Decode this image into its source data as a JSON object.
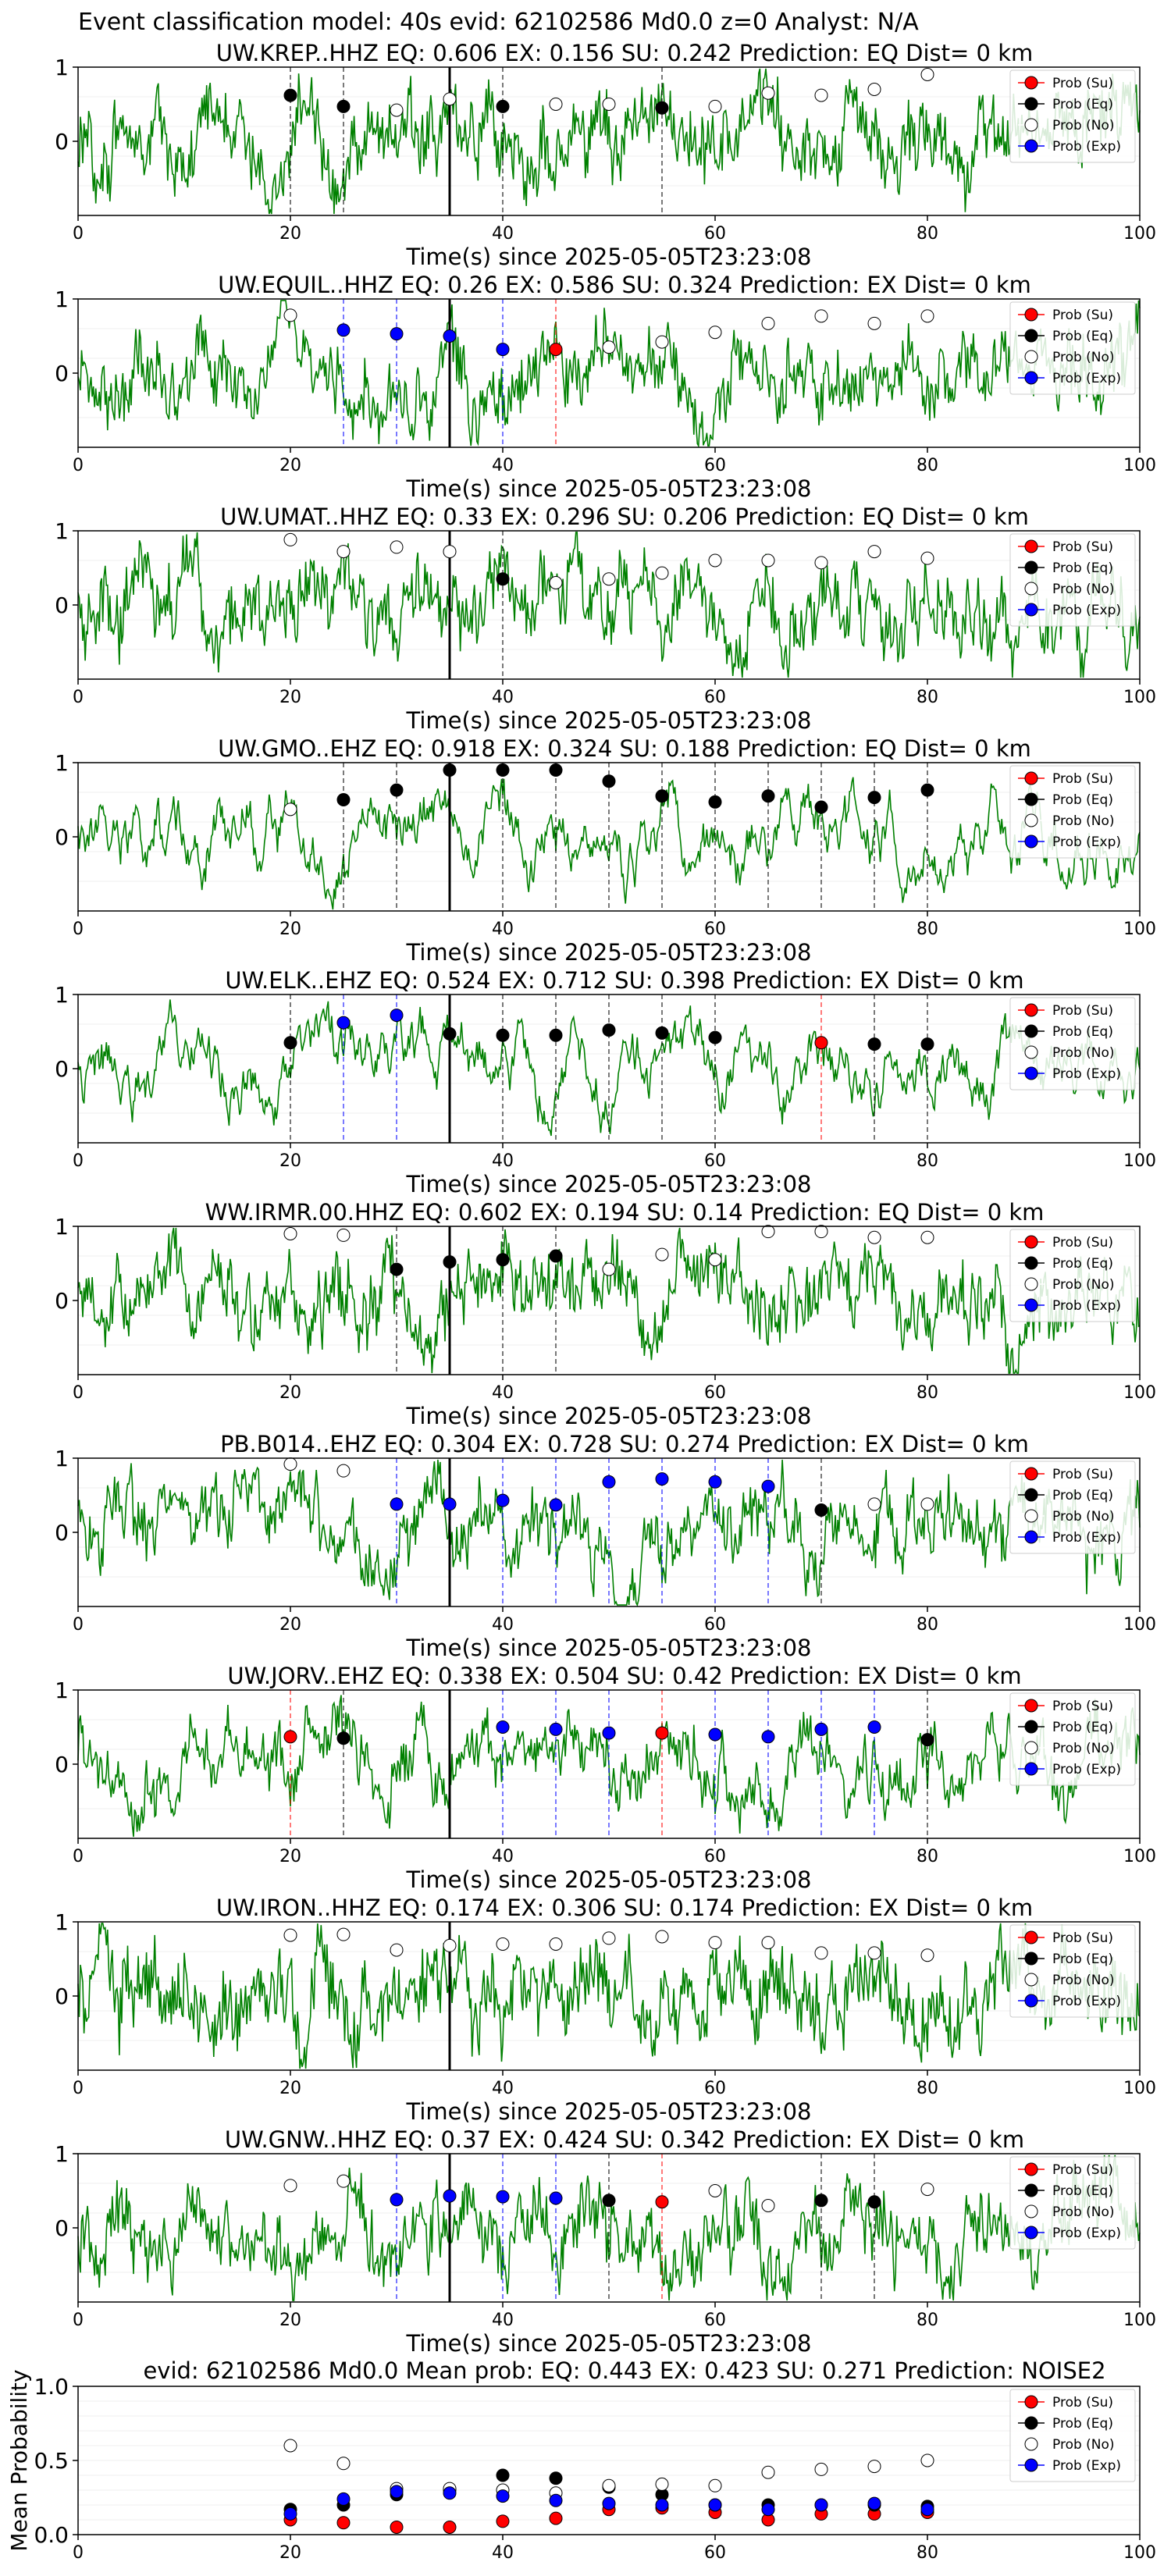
{
  "suptitle": "Event classification model: 40s evid: 62102586 Md0.0 z=0 Analyst: N/A",
  "colors": {
    "waveform": "#008000",
    "su": "#ff0000",
    "eq": "#000000",
    "no": "#ffffff",
    "exp": "#0000ff",
    "arrival": "#000000"
  },
  "legend": {
    "su": "Prob (Su)",
    "eq": "Prob (Eq)",
    "no": "Prob (No)",
    "exp": "Prob (Exp)"
  },
  "panels": [
    {
      "title": "UW.KREP..HHZ   EQ: 0.606  EX: 0.156  SU: 0.242   Prediction: EQ    Dist= 0 km",
      "xlabel": "Time(s) since 2025-05-05T23:23:08",
      "ylim": [
        -1,
        1
      ],
      "yticks": [
        "1",
        "0"
      ],
      "xticks": [
        "0",
        "20",
        "40",
        "60",
        "80",
        "100"
      ],
      "arrival": 35,
      "noise": 0.55,
      "points": [
        [
          20,
          0.62,
          "eq"
        ],
        [
          25,
          0.47,
          "eq"
        ],
        [
          30,
          0.42,
          "no"
        ],
        [
          35,
          0.57,
          "no"
        ],
        [
          40,
          0.47,
          "eq"
        ],
        [
          45,
          0.5,
          "no"
        ],
        [
          50,
          0.5,
          "no"
        ],
        [
          55,
          0.45,
          "eq"
        ],
        [
          60,
          0.47,
          "no"
        ],
        [
          65,
          0.65,
          "no"
        ],
        [
          70,
          0.62,
          "no"
        ],
        [
          75,
          0.7,
          "no"
        ],
        [
          80,
          0.9,
          "no"
        ]
      ]
    },
    {
      "title": "UW.EQUIL..HHZ   EQ: 0.26  EX: 0.586  SU: 0.324   Prediction: EX    Dist= 0 km",
      "xlabel": "Time(s) since 2025-05-05T23:23:08",
      "ylim": [
        -1,
        1
      ],
      "yticks": [
        "1",
        "0"
      ],
      "xticks": [
        "0",
        "20",
        "40",
        "60",
        "80",
        "100"
      ],
      "arrival": 35,
      "noise": 0.5,
      "points": [
        [
          20,
          0.78,
          "no"
        ],
        [
          25,
          0.58,
          "exp"
        ],
        [
          30,
          0.53,
          "exp"
        ],
        [
          35,
          0.5,
          "exp"
        ],
        [
          40,
          0.32,
          "exp"
        ],
        [
          45,
          0.32,
          "su"
        ],
        [
          50,
          0.35,
          "no"
        ],
        [
          55,
          0.42,
          "no"
        ],
        [
          60,
          0.55,
          "no"
        ],
        [
          65,
          0.67,
          "no"
        ],
        [
          70,
          0.77,
          "no"
        ],
        [
          75,
          0.67,
          "no"
        ],
        [
          80,
          0.77,
          "no"
        ]
      ]
    },
    {
      "title": "UW.UMAT..HHZ   EQ: 0.33  EX: 0.296  SU: 0.206   Prediction: EQ    Dist= 0 km",
      "xlabel": "Time(s) since 2025-05-05T23:23:08",
      "ylim": [
        -1,
        1
      ],
      "yticks": [
        "1",
        "0"
      ],
      "xticks": [
        "0",
        "20",
        "40",
        "60",
        "80",
        "100"
      ],
      "arrival": 35,
      "noise": 0.55,
      "points": [
        [
          20,
          0.88,
          "no"
        ],
        [
          25,
          0.72,
          "no"
        ],
        [
          30,
          0.78,
          "no"
        ],
        [
          35,
          0.72,
          "no"
        ],
        [
          40,
          0.35,
          "eq"
        ],
        [
          45,
          0.3,
          "no"
        ],
        [
          50,
          0.35,
          "no"
        ],
        [
          55,
          0.43,
          "no"
        ],
        [
          60,
          0.6,
          "no"
        ],
        [
          65,
          0.6,
          "no"
        ],
        [
          70,
          0.57,
          "no"
        ],
        [
          75,
          0.72,
          "no"
        ],
        [
          80,
          0.63,
          "no"
        ]
      ]
    },
    {
      "title": "UW.GMO..EHZ   EQ: 0.918  EX: 0.324  SU: 0.188   Prediction: EQ    Dist= 0 km",
      "xlabel": "Time(s) since 2025-05-05T23:23:08",
      "ylim": [
        -1,
        1
      ],
      "yticks": [
        "1",
        "0"
      ],
      "xticks": [
        "0",
        "20",
        "40",
        "60",
        "80",
        "100"
      ],
      "arrival": 35,
      "noise": 0.12,
      "points": [
        [
          20,
          0.37,
          "no"
        ],
        [
          25,
          0.5,
          "eq"
        ],
        [
          30,
          0.63,
          "eq"
        ],
        [
          35,
          0.9,
          "eq"
        ],
        [
          40,
          0.9,
          "eq"
        ],
        [
          45,
          0.9,
          "eq"
        ],
        [
          50,
          0.75,
          "eq"
        ],
        [
          55,
          0.55,
          "eq"
        ],
        [
          60,
          0.47,
          "eq"
        ],
        [
          65,
          0.55,
          "eq"
        ],
        [
          70,
          0.4,
          "eq"
        ],
        [
          75,
          0.53,
          "eq"
        ],
        [
          80,
          0.63,
          "eq"
        ]
      ]
    },
    {
      "title": "UW.ELK..EHZ   EQ: 0.524  EX: 0.712  SU: 0.398   Prediction: EX    Dist= 0 km",
      "xlabel": "Time(s) since 2025-05-05T23:23:08",
      "ylim": [
        -1,
        1
      ],
      "yticks": [
        "1",
        "0"
      ],
      "xticks": [
        "0",
        "20",
        "40",
        "60",
        "80",
        "100"
      ],
      "arrival": 35,
      "noise": 0.08,
      "points": [
        [
          20,
          0.35,
          "eq"
        ],
        [
          25,
          0.62,
          "exp"
        ],
        [
          30,
          0.72,
          "exp"
        ],
        [
          35,
          0.47,
          "eq"
        ],
        [
          40,
          0.45,
          "eq"
        ],
        [
          45,
          0.45,
          "eq"
        ],
        [
          50,
          0.52,
          "eq"
        ],
        [
          55,
          0.48,
          "eq"
        ],
        [
          60,
          0.42,
          "eq"
        ],
        [
          70,
          0.35,
          "su"
        ],
        [
          75,
          0.33,
          "eq"
        ],
        [
          80,
          0.33,
          "eq"
        ]
      ]
    },
    {
      "title": "WW.IRMR.00.HHZ   EQ: 0.602  EX: 0.194  SU: 0.14   Prediction: EQ    Dist= 0 km",
      "xlabel": "Time(s) since 2025-05-05T23:23:08",
      "ylim": [
        -1,
        1
      ],
      "yticks": [
        "1",
        "0"
      ],
      "xticks": [
        "0",
        "20",
        "40",
        "60",
        "80",
        "100"
      ],
      "arrival": 35,
      "noise": 0.5,
      "points": [
        [
          20,
          0.9,
          "no"
        ],
        [
          25,
          0.88,
          "no"
        ],
        [
          30,
          0.42,
          "eq"
        ],
        [
          35,
          0.52,
          "eq"
        ],
        [
          40,
          0.55,
          "eq"
        ],
        [
          45,
          0.6,
          "eq"
        ],
        [
          50,
          0.42,
          "no"
        ],
        [
          55,
          0.62,
          "no"
        ],
        [
          60,
          0.55,
          "no"
        ],
        [
          65,
          0.93,
          "no"
        ],
        [
          70,
          0.93,
          "no"
        ],
        [
          75,
          0.85,
          "no"
        ],
        [
          80,
          0.85,
          "no"
        ]
      ]
    },
    {
      "title": "PB.B014..EHZ   EQ: 0.304  EX: 0.728  SU: 0.274   Prediction: EX    Dist= 0 km",
      "xlabel": "Time(s) since 2025-05-05T23:23:08",
      "ylim": [
        -1,
        1
      ],
      "yticks": [
        "1",
        "0"
      ],
      "xticks": [
        "0",
        "20",
        "40",
        "60",
        "80",
        "100"
      ],
      "arrival": 35,
      "noise": 0.45,
      "points": [
        [
          20,
          0.92,
          "no"
        ],
        [
          25,
          0.83,
          "no"
        ],
        [
          30,
          0.38,
          "exp"
        ],
        [
          35,
          0.38,
          "exp"
        ],
        [
          40,
          0.43,
          "exp"
        ],
        [
          45,
          0.37,
          "exp"
        ],
        [
          50,
          0.68,
          "exp"
        ],
        [
          55,
          0.72,
          "exp"
        ],
        [
          60,
          0.68,
          "exp"
        ],
        [
          65,
          0.62,
          "exp"
        ],
        [
          70,
          0.3,
          "eq"
        ],
        [
          75,
          0.38,
          "no"
        ],
        [
          80,
          0.38,
          "no"
        ]
      ]
    },
    {
      "title": "UW.JORV..EHZ   EQ: 0.338  EX: 0.504  SU: 0.42   Prediction: EX    Dist= 0 km",
      "xlabel": "Time(s) since 2025-05-05T23:23:08",
      "ylim": [
        -1,
        1
      ],
      "yticks": [
        "1",
        "0"
      ],
      "xticks": [
        "0",
        "20",
        "40",
        "60",
        "80",
        "100"
      ],
      "arrival": 35,
      "noise": 0.35,
      "points": [
        [
          20,
          0.37,
          "su"
        ],
        [
          25,
          0.35,
          "eq"
        ],
        [
          40,
          0.5,
          "exp"
        ],
        [
          45,
          0.47,
          "exp"
        ],
        [
          50,
          0.42,
          "exp"
        ],
        [
          55,
          0.42,
          "su"
        ],
        [
          60,
          0.4,
          "exp"
        ],
        [
          65,
          0.37,
          "exp"
        ],
        [
          70,
          0.47,
          "exp"
        ],
        [
          75,
          0.5,
          "exp"
        ],
        [
          80,
          0.33,
          "eq"
        ]
      ]
    },
    {
      "title": "UW.IRON..HHZ   EQ: 0.174  EX: 0.306  SU: 0.174   Prediction: EX    Dist= 0 km",
      "xlabel": "Time(s) since 2025-05-05T23:23:08",
      "ylim": [
        -1,
        1
      ],
      "yticks": [
        "1",
        "0"
      ],
      "xticks": [
        "0",
        "20",
        "40",
        "60",
        "80",
        "100"
      ],
      "arrival": 35,
      "noise": 0.65,
      "points": [
        [
          20,
          0.82,
          "no"
        ],
        [
          25,
          0.83,
          "no"
        ],
        [
          30,
          0.62,
          "no"
        ],
        [
          35,
          0.68,
          "no"
        ],
        [
          40,
          0.7,
          "no"
        ],
        [
          45,
          0.7,
          "no"
        ],
        [
          50,
          0.78,
          "no"
        ],
        [
          55,
          0.8,
          "no"
        ],
        [
          60,
          0.72,
          "no"
        ],
        [
          65,
          0.72,
          "no"
        ],
        [
          70,
          0.58,
          "no"
        ],
        [
          75,
          0.58,
          "no"
        ],
        [
          80,
          0.55,
          "no"
        ]
      ]
    },
    {
      "title": "UW.GNW..HHZ   EQ: 0.37  EX: 0.424  SU: 0.342   Prediction: EX    Dist= 0 km",
      "xlabel": "Time(s) since 2025-05-05T23:23:08",
      "ylim": [
        -1,
        1
      ],
      "yticks": [
        "1",
        "0"
      ],
      "xticks": [
        "0",
        "20",
        "40",
        "60",
        "80",
        "100"
      ],
      "arrival": 35,
      "noise": 0.5,
      "points": [
        [
          20,
          0.57,
          "no"
        ],
        [
          25,
          0.63,
          "no"
        ],
        [
          30,
          0.38,
          "exp"
        ],
        [
          35,
          0.43,
          "exp"
        ],
        [
          40,
          0.42,
          "exp"
        ],
        [
          45,
          0.4,
          "exp"
        ],
        [
          50,
          0.37,
          "eq"
        ],
        [
          55,
          0.35,
          "su"
        ],
        [
          60,
          0.5,
          "no"
        ],
        [
          65,
          0.3,
          "no"
        ],
        [
          70,
          0.37,
          "eq"
        ],
        [
          75,
          0.35,
          "eq"
        ],
        [
          80,
          0.52,
          "no"
        ]
      ]
    }
  ],
  "chart_data": {
    "type": "scatter",
    "title": "evid: 62102586  Md0.0   Mean prob:   EQ: 0.443  EX: 0.423  SU: 0.271   Prediction: NOISE2",
    "ylabel": "Mean Probability",
    "xlabel": "",
    "xlim": [
      0,
      100
    ],
    "ylim": [
      0,
      1
    ],
    "xticks": [
      "0",
      "20",
      "40",
      "60",
      "80",
      "100"
    ],
    "yticks": [
      "0.0",
      "0.5",
      "1.0"
    ],
    "x": [
      20,
      25,
      30,
      35,
      40,
      45,
      50,
      55,
      60,
      65,
      70,
      75,
      80
    ],
    "series": [
      {
        "name": "Prob (Su)",
        "key": "su",
        "values": [
          0.1,
          0.08,
          0.05,
          0.05,
          0.09,
          0.11,
          0.17,
          0.18,
          0.15,
          0.1,
          0.14,
          0.14,
          0.15
        ]
      },
      {
        "name": "Prob (Eq)",
        "key": "eq",
        "values": [
          0.17,
          0.2,
          0.27,
          0.3,
          0.4,
          0.38,
          0.32,
          0.27,
          0.2,
          0.2,
          0.2,
          0.2,
          0.19
        ]
      },
      {
        "name": "Prob (No)",
        "key": "no",
        "values": [
          0.6,
          0.48,
          0.31,
          0.31,
          0.3,
          0.28,
          0.33,
          0.34,
          0.33,
          0.42,
          0.44,
          0.46,
          0.5
        ]
      },
      {
        "name": "Prob (Exp)",
        "key": "exp",
        "values": [
          0.14,
          0.24,
          0.29,
          0.28,
          0.26,
          0.23,
          0.21,
          0.2,
          0.2,
          0.17,
          0.2,
          0.21,
          0.17
        ]
      }
    ],
    "legend_position": "top-right",
    "grid": true
  }
}
